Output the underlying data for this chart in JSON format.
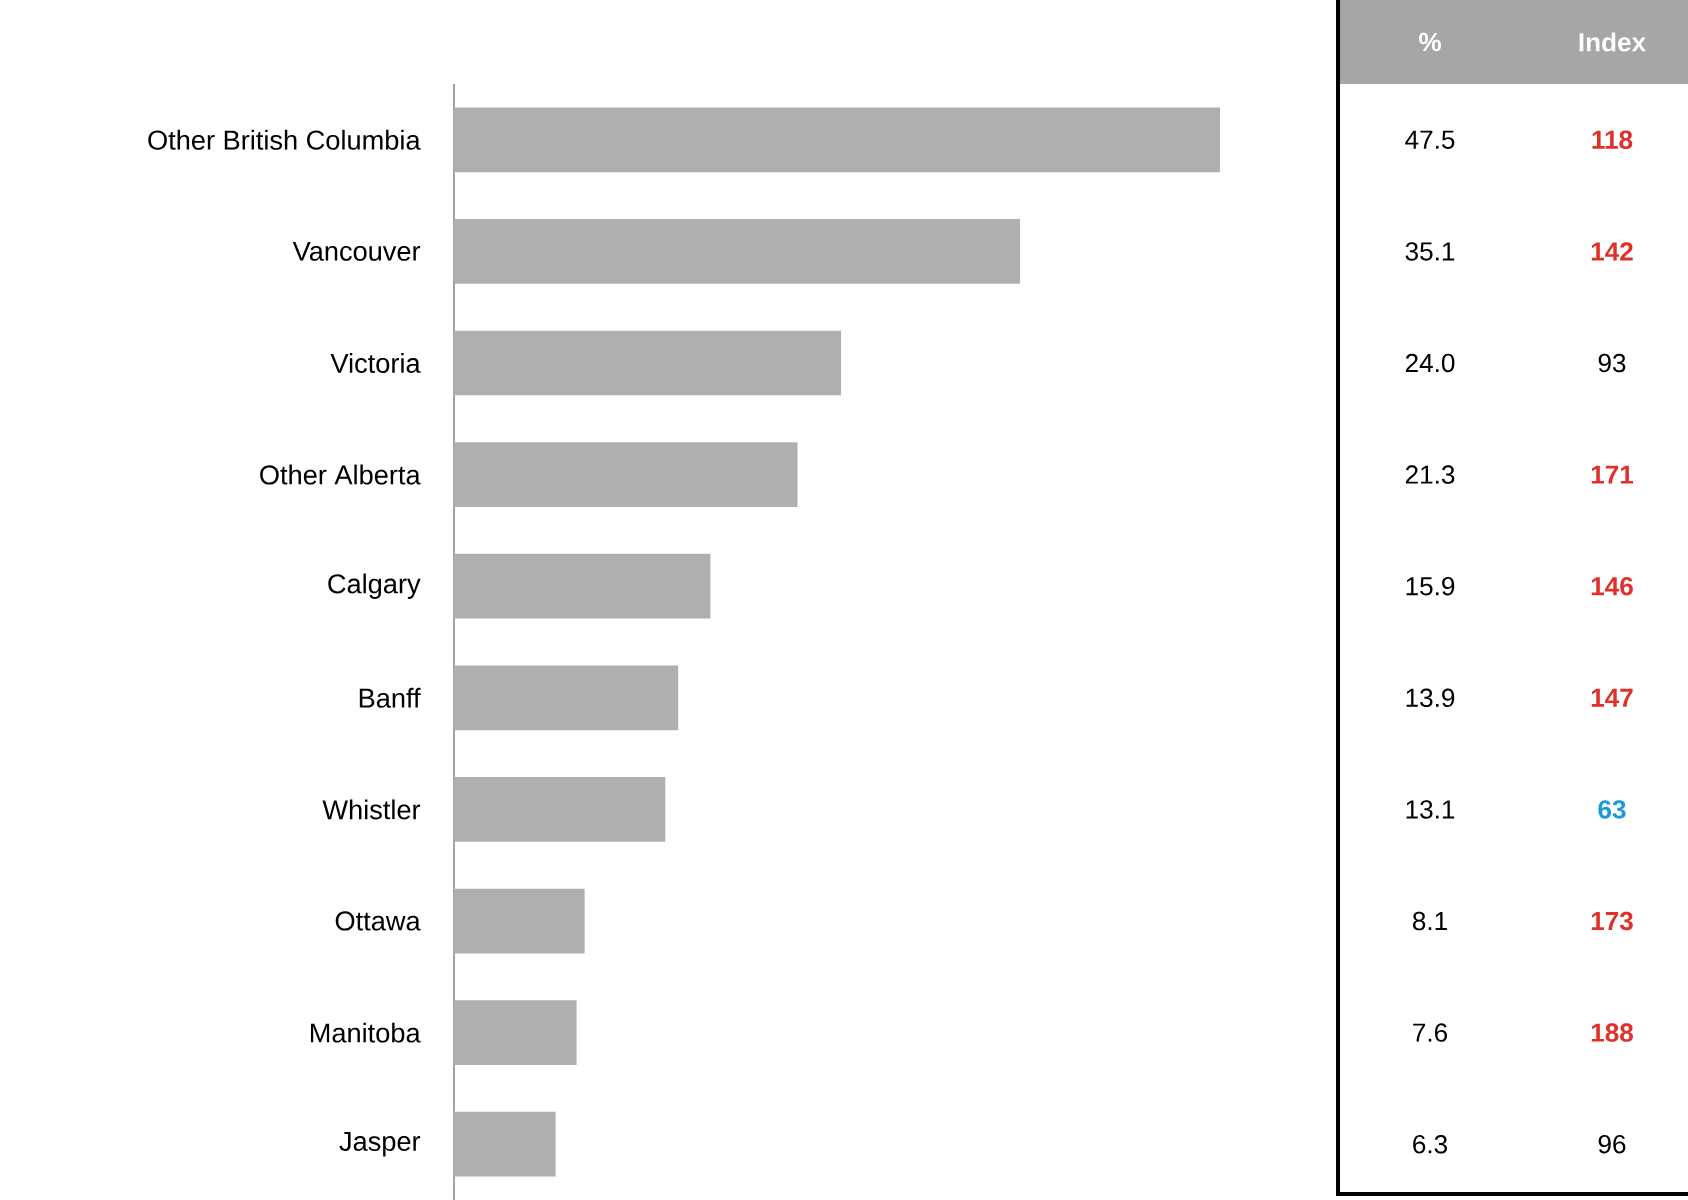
{
  "chart_data": [
    {
      "type": "bar",
      "orientation": "horizontal",
      "categories": [
        "Other British Columbia",
        "Vancouver",
        "Victoria",
        "Other Alberta",
        "Calgary",
        "Banff",
        "Whistler",
        "Ottawa",
        "Manitoba",
        "Jasper"
      ],
      "series": [
        {
          "name": "%",
          "color": "#aeafb1",
          "values": [
            47.5,
            35.1,
            24.0,
            21.3,
            15.9,
            13.9,
            13.1,
            8.1,
            7.6,
            6.3
          ],
          "value_labels": [
            "47.5",
            "35.1",
            "24.0",
            "21.3",
            "15.9",
            "13.9",
            "13.1",
            "8.1",
            "7.6",
            "6.3"
          ]
        }
      ]
    },
    {
      "type": "other",
      "series": [
        {
          "name": "Index",
          "values": [
            118,
            142,
            93,
            171,
            146,
            147,
            63,
            173,
            188,
            96
          ],
          "value_labels": [
            "118",
            "142",
            "93",
            "171",
            "146",
            "147",
            "63",
            "173",
            "188",
            "96"
          ],
          "colors": [
            "#e0302a",
            "#e0302a",
            "#000000",
            "#e0302a",
            "#e0302a",
            "#e0302a",
            "#1a9bd7",
            "#e0302a",
            "#e0302a",
            "#000000"
          ]
        }
      ]
    }
  ]
}
